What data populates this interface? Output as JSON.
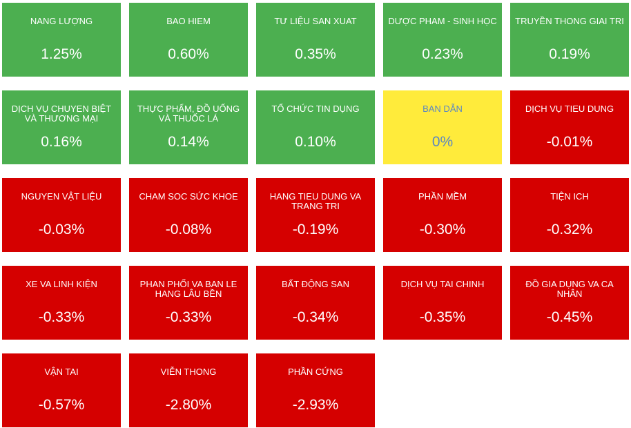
{
  "colors": {
    "up": "#4caf50",
    "down": "#d50000",
    "flat": "#ffeb3b",
    "flat_text": "#5b87c2"
  },
  "sectors": [
    {
      "name": "NANG LƯỢNG",
      "change": "1.25%",
      "trend": "up"
    },
    {
      "name": "BAO HIEM",
      "change": "0.60%",
      "trend": "up"
    },
    {
      "name": "TƯ LIỆU SAN XUAT",
      "change": "0.35%",
      "trend": "up"
    },
    {
      "name": "DƯỢC PHAM - SINH HỌC",
      "change": "0.23%",
      "trend": "up"
    },
    {
      "name": "TRUYỀN THONG GIAI TRI",
      "change": "0.19%",
      "trend": "up"
    },
    {
      "name": "DỊCH VỤ CHUYEN BIỆT VÀ THƯƠNG MẠI",
      "change": "0.16%",
      "trend": "up"
    },
    {
      "name": "THỰC PHẨM, ĐỒ UỐNG VÀ THUỐC LÁ",
      "change": "0.14%",
      "trend": "up"
    },
    {
      "name": "TỔ CHỨC TIN DỤNG",
      "change": "0.10%",
      "trend": "up"
    },
    {
      "name": "BAN DẪN",
      "change": "0%",
      "trend": "flat"
    },
    {
      "name": "DỊCH VỤ TIEU DUNG",
      "change": "-0.01%",
      "trend": "down"
    },
    {
      "name": "NGUYEN VẬT LIỆU",
      "change": "-0.03%",
      "trend": "down"
    },
    {
      "name": "CHAM SOC SỨC KHOE",
      "change": "-0.08%",
      "trend": "down"
    },
    {
      "name": "HANG TIEU DUNG VA TRANG TRI",
      "change": "-0.19%",
      "trend": "down"
    },
    {
      "name": "PHẦN MỀM",
      "change": "-0.30%",
      "trend": "down"
    },
    {
      "name": "TIỆN ICH",
      "change": "-0.32%",
      "trend": "down"
    },
    {
      "name": "XE VA LINH KIỆN",
      "change": "-0.33%",
      "trend": "down"
    },
    {
      "name": "PHAN PHỐI VA BAN LE HANG LÂU BỀN",
      "change": "-0.33%",
      "trend": "down"
    },
    {
      "name": "BẤT ĐỘNG SAN",
      "change": "-0.34%",
      "trend": "down"
    },
    {
      "name": "DỊCH VỤ TAI CHINH",
      "change": "-0.35%",
      "trend": "down"
    },
    {
      "name": "ĐỒ GIA DỤNG VA CA NHÂN",
      "change": "-0.45%",
      "trend": "down"
    },
    {
      "name": "VẬN TAI",
      "change": "-0.57%",
      "trend": "down"
    },
    {
      "name": "VIỄN THONG",
      "change": "-2.80%",
      "trend": "down"
    },
    {
      "name": "PHẦN CỨNG",
      "change": "-2.93%",
      "trend": "down"
    }
  ]
}
